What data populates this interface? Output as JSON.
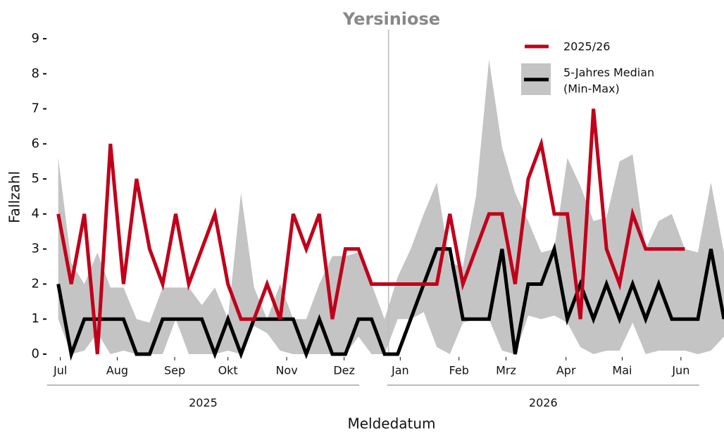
{
  "chart_data": {
    "type": "line",
    "title": "Yersiniose",
    "x_label": "Meldedatum",
    "y_label": "Fallzahl",
    "x": [
      0,
      1,
      2,
      3,
      4,
      5,
      6,
      7,
      8,
      9,
      10,
      11,
      12,
      13,
      14,
      15,
      16,
      17,
      18,
      19,
      20,
      21,
      22,
      23,
      24,
      25,
      26,
      27,
      28,
      29,
      30,
      31,
      32,
      33,
      34,
      35,
      36,
      37,
      38,
      39,
      40,
      41,
      42,
      43,
      44,
      45,
      46,
      47,
      48,
      49,
      50,
      51
    ],
    "series": [
      {
        "name": "2025/26",
        "color": "#c0001a",
        "values": [
          4,
          2,
          4,
          0,
          6,
          2,
          5,
          3,
          2,
          4,
          2,
          3,
          4,
          2,
          1,
          1,
          2,
          1,
          4,
          3,
          4,
          1,
          3,
          3,
          2,
          2,
          2,
          2,
          2,
          2,
          4,
          2,
          3,
          4,
          4,
          2,
          5,
          6,
          4,
          4,
          1,
          7,
          3,
          2,
          4,
          3,
          3,
          3,
          3,
          null,
          null,
          null
        ]
      },
      {
        "name": "5-Jahres Median",
        "color": "#000000",
        "values": [
          2,
          0,
          1,
          1,
          1,
          1,
          0,
          0,
          1,
          1,
          1,
          1,
          0,
          1,
          0,
          1,
          1,
          1,
          1,
          0,
          1,
          0,
          0,
          1,
          1,
          0,
          0,
          1,
          2,
          3,
          3,
          1,
          1,
          1,
          3,
          0,
          2,
          2,
          3,
          1,
          2,
          1,
          2,
          1,
          2,
          1,
          2,
          1,
          1,
          1,
          3,
          1
        ]
      }
    ],
    "band": {
      "name": "(Min-Max)",
      "color": "#c4c4c4",
      "max": [
        5.6,
        2.6,
        2.0,
        2.9,
        1.9,
        1.9,
        1.0,
        0.9,
        1.9,
        1.9,
        1.9,
        1.4,
        1.9,
        1.0,
        4.6,
        1.9,
        1.0,
        2.0,
        1.0,
        1.0,
        2.0,
        2.8,
        2.8,
        2.9,
        2.0,
        1.0,
        2.2,
        3.0,
        4.0,
        4.9,
        2.6,
        2.5,
        4.5,
        8.4,
        5.9,
        4.6,
        3.8,
        2.9,
        3.0,
        5.6,
        4.8,
        3.8,
        3.9,
        5.5,
        5.7,
        3.0,
        3.8,
        4.0,
        3.0,
        2.9,
        4.9,
        2.9
      ],
      "min": [
        1.0,
        0,
        0.1,
        0.6,
        0,
        0.1,
        0,
        0,
        0,
        1.0,
        0,
        0,
        0,
        0.1,
        0,
        0.8,
        0.6,
        0.1,
        0,
        0,
        0,
        0,
        0,
        0.5,
        0,
        0,
        1.0,
        1.0,
        1.2,
        0.2,
        0,
        0.9,
        1.0,
        1.0,
        0.1,
        0,
        1.1,
        1.0,
        1.1,
        0.9,
        0.2,
        0,
        0.1,
        0.1,
        0.9,
        0,
        0.1,
        0.1,
        0.1,
        0,
        0.1,
        0.5
      ]
    },
    "xlim": [
      -0.9,
      51
    ],
    "xticks": [
      {
        "value": 0.16,
        "label": "Jul"
      },
      {
        "value": 4.52,
        "label": "Aug"
      },
      {
        "value": 8.92,
        "label": "Sep"
      },
      {
        "value": 13.0,
        "label": "Okt"
      },
      {
        "value": 17.5,
        "label": "Nov"
      },
      {
        "value": 21.9,
        "label": "Dez"
      },
      {
        "value": 26.2,
        "label": "Jan"
      },
      {
        "value": 30.7,
        "label": "Feb"
      },
      {
        "value": 34.3,
        "label": "Mrz"
      },
      {
        "value": 38.9,
        "label": "Apr"
      },
      {
        "value": 43.2,
        "label": "Mai"
      },
      {
        "value": 47.7,
        "label": "Jun"
      }
    ],
    "ylim": [
      0,
      9
    ],
    "yticks": [
      0,
      1,
      2,
      3,
      4,
      5,
      6,
      7,
      8,
      9
    ],
    "divider_x": 25.3,
    "year_groups": [
      {
        "label": "2025",
        "range": [
          -0.86,
          23.06
        ]
      },
      {
        "label": "2026",
        "range": [
          25.2,
          49.1
        ]
      }
    ],
    "legend": "top-right"
  }
}
